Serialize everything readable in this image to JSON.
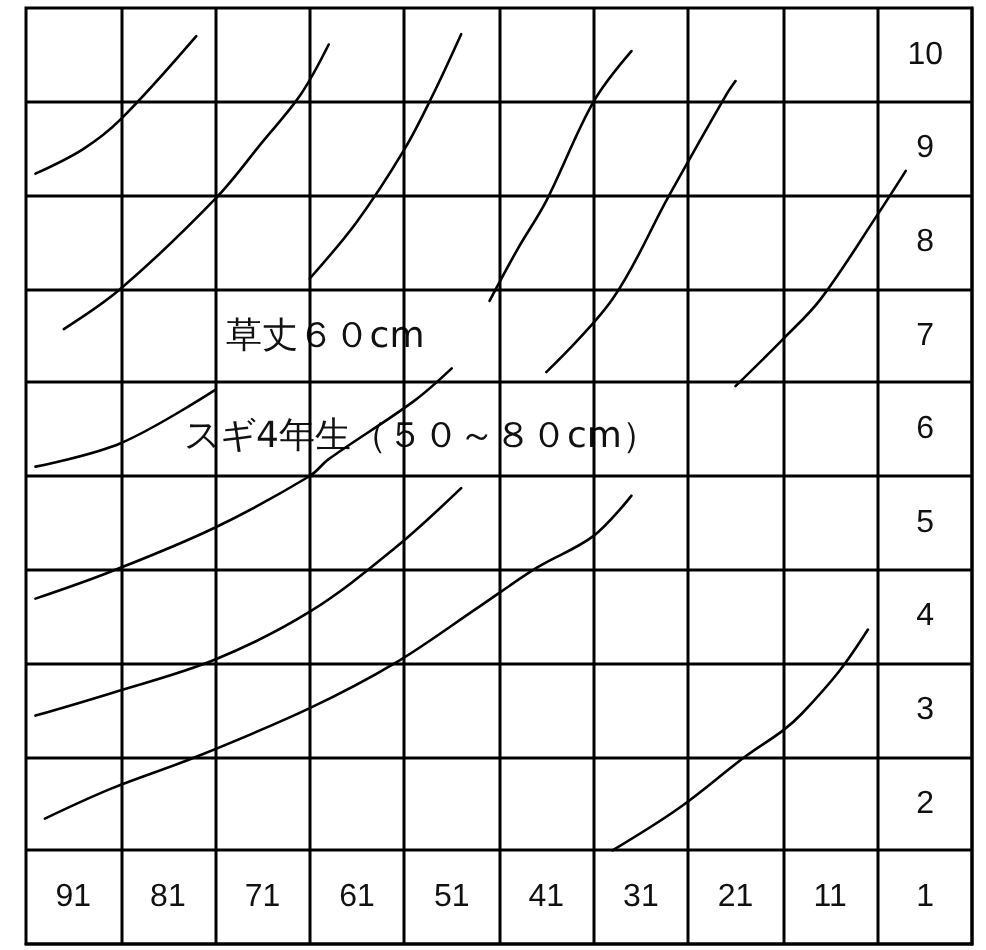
{
  "chart_data": {
    "type": "line",
    "xlim": [
      96,
      -4
    ],
    "ylim": [
      0.5,
      10.5
    ],
    "xticks": [
      91,
      {
        "value": 86,
        "label": null
      },
      81,
      {
        "value": 76,
        "label": null
      },
      71,
      {
        "value": 66,
        "label": null
      },
      61,
      {
        "value": 56,
        "label": null
      },
      51,
      {
        "value": 46,
        "label": null
      },
      41,
      {
        "value": 36,
        "label": null
      },
      31,
      {
        "value": 26,
        "label": null
      },
      21,
      {
        "value": 16,
        "label": null
      },
      11,
      {
        "value": 6,
        "label": null
      }
    ],
    "yticks": [
      1,
      {
        "value": 1.5,
        "label": null
      },
      2,
      {
        "value": 2.5,
        "label": null
      },
      3,
      {
        "value": 3.5,
        "label": null
      },
      4,
      {
        "value": 4.5,
        "label": null
      },
      5,
      {
        "value": 5.5,
        "label": null
      },
      6,
      {
        "value": 6.5,
        "label": null
      },
      7,
      {
        "value": 7.5,
        "label": null
      },
      8,
      {
        "value": 8.5,
        "label": null
      },
      9,
      {
        "value": 9.5,
        "label": null
      },
      10
    ],
    "grid": true,
    "marker": "none",
    "line_style": "solid",
    "annotations": [
      "草丈６０cm",
      "スギ4年生（５０～８０cm）"
    ],
    "series": [
      {
        "color": "#000000",
        "x": [
          95,
          90,
          86,
          78
        ],
        "values": [
          8.73,
          8.99,
          9.31,
          10.2
        ]
      },
      {
        "color": "#000000",
        "x": [
          92,
          86,
          76,
          71,
          67,
          64
        ],
        "values": [
          7.07,
          7.5,
          8.46,
          9.07,
          9.57,
          10.11
        ]
      },
      {
        "color": "#000000",
        "x": [
          66,
          61,
          56,
          53,
          50
        ],
        "values": [
          7.61,
          8.22,
          8.99,
          9.57,
          10.22
        ]
      },
      {
        "color": "#000000",
        "x": [
          47,
          44,
          41,
          36,
          32
        ],
        "values": [
          7.37,
          7.93,
          8.44,
          9.5,
          10.04
        ]
      },
      {
        "color": "#000000",
        "x": [
          41,
          34,
          28,
          22,
          21
        ],
        "values": [
          6.61,
          7.39,
          8.5,
          9.57,
          9.72
        ]
      },
      {
        "color": "#000000",
        "x": [
          21,
          16,
          12,
          6,
          3
        ],
        "values": [
          6.46,
          6.96,
          7.39,
          8.29,
          8.76
        ]
      },
      {
        "color": "#000000",
        "x": [
          95,
          86,
          76
        ],
        "values": [
          5.6,
          5.85,
          6.42
        ]
      },
      {
        "color": "#000000",
        "x": [
          95,
          87,
          76,
          66,
          64,
          55,
          51
        ],
        "values": [
          4.19,
          4.48,
          4.95,
          5.5,
          5.68,
          6.3,
          6.65
        ]
      },
      {
        "color": "#000000",
        "x": [
          95,
          87,
          76,
          66,
          57,
          50
        ],
        "values": [
          2.94,
          3.18,
          3.54,
          4.05,
          4.73,
          5.37
        ]
      },
      {
        "color": "#000000",
        "x": [
          94,
          87,
          78,
          66,
          57,
          48,
          42,
          36,
          32
        ],
        "values": [
          1.84,
          2.16,
          2.5,
          3.02,
          3.5,
          4.11,
          4.52,
          4.86,
          5.29
        ]
      },
      {
        "color": "#000000",
        "x": [
          34,
          27,
          20,
          16,
          14,
          10,
          7
        ],
        "values": [
          1.5,
          1.95,
          2.5,
          2.78,
          2.96,
          3.42,
          3.86
        ]
      }
    ]
  }
}
